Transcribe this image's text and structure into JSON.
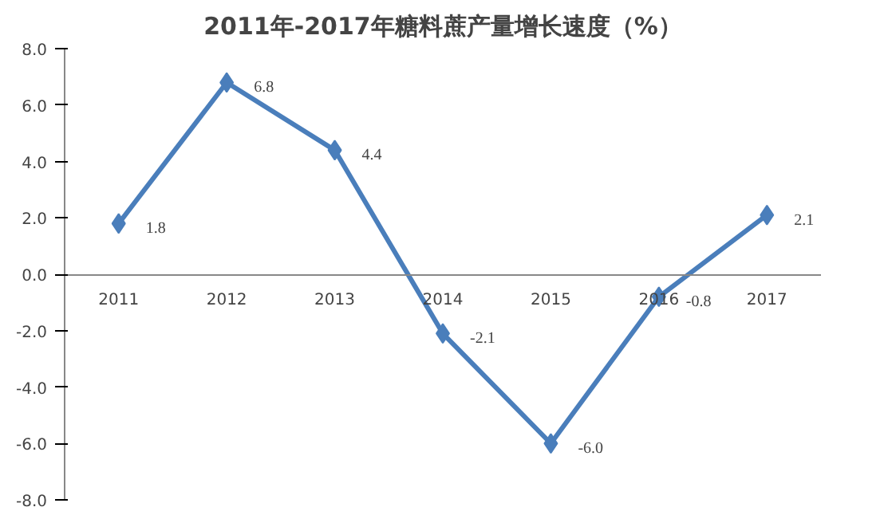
{
  "chart_data": {
    "type": "line",
    "title": "2011年-2017年糖料蔗产量增长速度（%）",
    "categories": [
      "2011",
      "2012",
      "2013",
      "2014",
      "2015",
      "2016",
      "2017"
    ],
    "series": [
      {
        "color": "#4a7ebb",
        "values": [
          1.8,
          6.8,
          4.4,
          -2.1,
          -6.0,
          -0.8,
          2.1
        ],
        "value_labels": [
          "1.8",
          "6.8",
          "4.4",
          "-2.1",
          "-6.0",
          "-0.8",
          "2.1"
        ]
      }
    ],
    "ylim": [
      -8,
      8
    ],
    "yticks": [
      {
        "value": -8,
        "label": "-8.0"
      },
      {
        "value": -6,
        "label": "-6.0"
      },
      {
        "value": -4,
        "label": "-4.0"
      },
      {
        "value": -2,
        "label": "-2.0"
      },
      {
        "value": 0,
        "label": "0.0"
      },
      {
        "value": 2,
        "label": "2.0"
      },
      {
        "value": 4,
        "label": "4.0"
      },
      {
        "value": 6,
        "label": "6.0"
      },
      {
        "value": 8,
        "label": "8.0"
      }
    ],
    "grid": false,
    "marker": "diamond",
    "line_style": "solid"
  }
}
